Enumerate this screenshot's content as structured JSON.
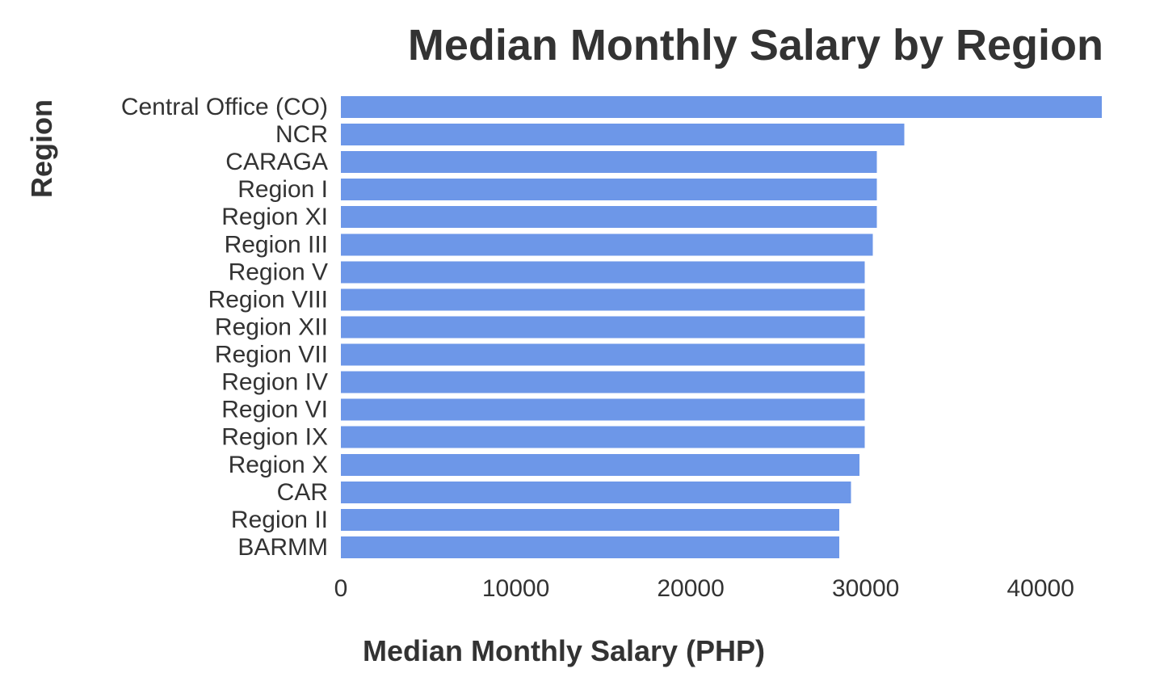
{
  "chart_data": {
    "type": "bar",
    "orientation": "horizontal",
    "title": "Median Monthly Salary by Region",
    "xlabel": "Median Monthly Salary (PHP)",
    "ylabel": "Region",
    "xlim": [
      0,
      43500
    ],
    "xticks": [
      0,
      10000,
      20000,
      30000,
      40000
    ],
    "grid": false,
    "legend": "none",
    "bar_color": "#6d97e8",
    "categories": [
      "Central Office (CO)",
      "NCR",
      "CARAGA",
      "Region I",
      "Region XI",
      "Region III",
      "Region V",
      "Region VIII",
      "Region XII",
      "Region VII",
      "Region IV",
      "Region VI",
      "Region IX",
      "Region X",
      "CAR",
      "Region II",
      "BARMM"
    ],
    "values": [
      43500,
      32200,
      30650,
      30650,
      30650,
      30400,
      29950,
      29950,
      29950,
      29950,
      29950,
      29950,
      29950,
      29650,
      29150,
      28500,
      28500
    ]
  }
}
